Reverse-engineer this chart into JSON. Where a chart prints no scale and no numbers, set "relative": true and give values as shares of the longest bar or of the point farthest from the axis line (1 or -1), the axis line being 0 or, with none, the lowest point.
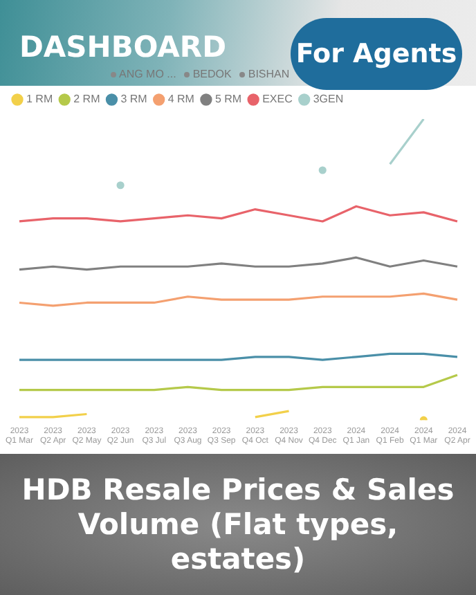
{
  "chart_data": {
    "type": "line",
    "title": "HDB Resale Prices & Sales Volume (Flat types, estates)",
    "annotations": [
      "DASHBOARD",
      "For Agents",
      "ANG MO ...",
      "BEDOK",
      "BISHAN"
    ],
    "categories": [
      "2023 Q1 Mar",
      "2023 Q2 Apr",
      "2023 Q2 May",
      "2023 Q2 Jun",
      "2023 Q3 Jul",
      "2023 Q3 Aug",
      "2023 Q3 Sep",
      "2023 Q4 Oct",
      "2023 Q4 Nov",
      "2023 Q4 Dec",
      "2024 Q1 Jan",
      "2024 Q1 Feb",
      "2024 Q1 Mar",
      "2024 Q2 Apr"
    ],
    "relative": true,
    "grid": false,
    "legend": "top left",
    "line_style": "solid",
    "series": [
      {
        "name": "1 RM",
        "color": "#f2d04a",
        "values": [
          0.01,
          0.01,
          0.02,
          null,
          null,
          null,
          null,
          0.01,
          0.03,
          null,
          null,
          null,
          0,
          null
        ]
      },
      {
        "name": "2 RM",
        "color": "#b5c94a",
        "values": [
          0.1,
          0.1,
          0.1,
          0.1,
          0.1,
          0.11,
          0.1,
          0.1,
          0.1,
          0.11,
          0.11,
          0.11,
          0.11,
          0.15
        ]
      },
      {
        "name": "3 RM",
        "color": "#4a8fa8",
        "values": [
          0.2,
          0.2,
          0.2,
          0.2,
          0.2,
          0.2,
          0.2,
          0.21,
          0.21,
          0.2,
          0.21,
          0.22,
          0.22,
          0.21
        ]
      },
      {
        "name": "4 RM",
        "color": "#f4a070",
        "values": [
          0.39,
          0.38,
          0.39,
          0.39,
          0.39,
          0.41,
          0.4,
          0.4,
          0.4,
          0.41,
          0.41,
          0.41,
          0.42,
          0.4
        ]
      },
      {
        "name": "5 RM",
        "color": "#808080",
        "values": [
          0.5,
          0.51,
          0.5,
          0.51,
          0.51,
          0.51,
          0.52,
          0.51,
          0.51,
          0.52,
          0.54,
          0.51,
          0.53,
          0.51
        ]
      },
      {
        "name": "EXEC",
        "color": "#e8636a",
        "values": [
          0.66,
          0.67,
          0.67,
          0.66,
          0.67,
          0.68,
          0.67,
          0.7,
          0.68,
          0.66,
          0.71,
          0.68,
          0.69,
          0.66
        ]
      },
      {
        "name": "3GEN",
        "color": "#a8d0cc",
        "values": [
          null,
          null,
          null,
          0.78,
          null,
          null,
          null,
          null,
          null,
          0.83,
          null,
          0.85,
          1,
          null
        ]
      }
    ]
  }
}
